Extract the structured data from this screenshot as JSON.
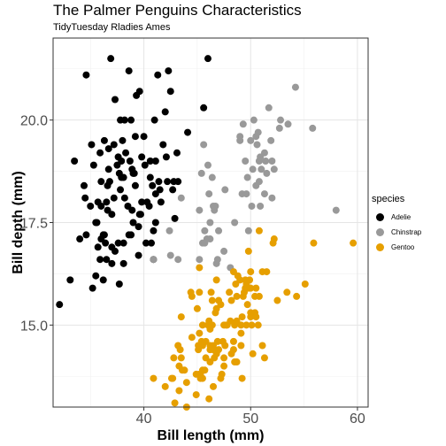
{
  "chart_data": {
    "type": "scatter",
    "title": "The Palmer Penguins Characteristics",
    "subtitle": "TidyTuesday Rladies Ames",
    "xlabel": "Bill length (mm)",
    "ylabel": "Bill depth (mm)",
    "xlim": [
      31.5,
      61
    ],
    "ylim": [
      13,
      22
    ],
    "xticks": [
      {
        "v": 40,
        "label": "40"
      },
      {
        "v": 50,
        "label": "50"
      },
      {
        "v": 60,
        "label": "60"
      }
    ],
    "yticks": [
      {
        "v": 15,
        "label": "15.0"
      },
      {
        "v": 17.5,
        "label": "17.5"
      },
      {
        "v": 20,
        "label": "20.0"
      }
    ],
    "grid": true,
    "legend": {
      "title": "species",
      "position": "right"
    },
    "series": [
      {
        "name": "Adelie",
        "color": "#000000",
        "points": [
          [
            32.1,
            15.5
          ],
          [
            33.1,
            16.1
          ],
          [
            33.5,
            19.0
          ],
          [
            34.0,
            17.1
          ],
          [
            34.4,
            18.4
          ],
          [
            34.5,
            18.1
          ],
          [
            34.6,
            21.1
          ],
          [
            34.6,
            17.2
          ],
          [
            35.0,
            17.9
          ],
          [
            35.1,
            19.4
          ],
          [
            35.2,
            15.9
          ],
          [
            35.3,
            18.9
          ],
          [
            35.5,
            17.5
          ],
          [
            35.5,
            16.2
          ],
          [
            35.6,
            17.5
          ],
          [
            35.7,
            16.9
          ],
          [
            35.9,
            19.2
          ],
          [
            35.9,
            16.6
          ],
          [
            36.0,
            18.5
          ],
          [
            36.0,
            17.9
          ],
          [
            36.0,
            17.1
          ],
          [
            36.2,
            16.1
          ],
          [
            36.2,
            17.2
          ],
          [
            36.3,
            19.5
          ],
          [
            36.4,
            17.0
          ],
          [
            36.5,
            18.0
          ],
          [
            36.5,
            16.6
          ],
          [
            36.6,
            17.8
          ],
          [
            36.6,
            18.4
          ],
          [
            36.7,
            18.8
          ],
          [
            36.7,
            19.3
          ],
          [
            36.8,
            18.5
          ],
          [
            36.9,
            21.5
          ],
          [
            37.0,
            16.9
          ],
          [
            37.0,
            16.5
          ],
          [
            37.2,
            18.1
          ],
          [
            37.2,
            19.4
          ],
          [
            37.3,
            20.5
          ],
          [
            37.3,
            16.8
          ],
          [
            37.5,
            18.9
          ],
          [
            37.6,
            19.1
          ],
          [
            37.6,
            17.0
          ],
          [
            37.7,
            18.7
          ],
          [
            37.7,
            16.0
          ],
          [
            37.8,
            18.3
          ],
          [
            37.8,
            20.0
          ],
          [
            37.9,
            18.6
          ],
          [
            38.1,
            18.6
          ],
          [
            38.1,
            17.0
          ],
          [
            38.1,
            16.5
          ],
          [
            38.2,
            18.1
          ],
          [
            38.2,
            20.0
          ],
          [
            38.3,
            19.2
          ],
          [
            38.5,
            17.9
          ],
          [
            38.6,
            21.2
          ],
          [
            38.6,
            17.2
          ],
          [
            38.7,
            19.0
          ],
          [
            38.8,
            17.2
          ],
          [
            38.8,
            20.0
          ],
          [
            38.9,
            17.8
          ],
          [
            38.9,
            18.8
          ],
          [
            39.0,
            17.5
          ],
          [
            39.0,
            18.7
          ],
          [
            39.1,
            18.7
          ],
          [
            39.2,
            19.6
          ],
          [
            39.3,
            20.6
          ],
          [
            39.5,
            16.7
          ],
          [
            39.5,
            17.4
          ],
          [
            39.6,
            17.7
          ],
          [
            39.6,
            20.7
          ],
          [
            39.7,
            17.7
          ],
          [
            39.8,
            19.1
          ],
          [
            40.1,
            18.9
          ],
          [
            40.2,
            17.0
          ],
          [
            40.3,
            18.0
          ],
          [
            40.5,
            17.9
          ],
          [
            40.6,
            18.6
          ],
          [
            40.6,
            19.0
          ],
          [
            40.7,
            17.0
          ],
          [
            40.8,
            18.4
          ],
          [
            40.9,
            16.6
          ],
          [
            41.0,
            20.0
          ],
          [
            41.1,
            18.2
          ],
          [
            41.1,
            19.0
          ],
          [
            41.3,
            21.1
          ],
          [
            41.4,
            18.5
          ],
          [
            41.5,
            18.3
          ],
          [
            41.6,
            18.0
          ],
          [
            41.8,
            19.4
          ],
          [
            42.0,
            20.2
          ],
          [
            42.1,
            19.1
          ],
          [
            42.2,
            18.5
          ],
          [
            42.3,
            21.2
          ],
          [
            42.5,
            20.7
          ],
          [
            42.7,
            18.3
          ],
          [
            42.8,
            18.5
          ],
          [
            42.9,
            17.6
          ],
          [
            43.1,
            19.2
          ],
          [
            43.2,
            18.5
          ],
          [
            44.1,
            19.7
          ],
          [
            45.6,
            20.3
          ],
          [
            46.0,
            21.5
          ],
          [
            35.7,
            18.0
          ],
          [
            37.0,
            17.7
          ],
          [
            39.8,
            18.0
          ],
          [
            41.1,
            17.5
          ],
          [
            36.3,
            17.2
          ],
          [
            38.0,
            19.5
          ],
          [
            40.0,
            19.6
          ],
          [
            37.9,
            19.0
          ],
          [
            39.2,
            18.4
          ],
          [
            40.9,
            17.3
          ]
        ]
      },
      {
        "name": "Chinstrap",
        "color": "#999999",
        "points": [
          [
            40.9,
            16.6
          ],
          [
            42.4,
            17.3
          ],
          [
            42.5,
            16.7
          ],
          [
            43.2,
            16.6
          ],
          [
            43.5,
            18.1
          ],
          [
            45.2,
            16.6
          ],
          [
            45.2,
            17.8
          ],
          [
            45.4,
            18.7
          ],
          [
            45.5,
            17.0
          ],
          [
            45.6,
            19.4
          ],
          [
            45.7,
            17.3
          ],
          [
            45.9,
            17.1
          ],
          [
            46.0,
            18.9
          ],
          [
            46.1,
            18.2
          ],
          [
            46.2,
            17.5
          ],
          [
            46.4,
            18.6
          ],
          [
            46.5,
            17.9
          ],
          [
            46.6,
            17.8
          ],
          [
            46.7,
            17.9
          ],
          [
            46.8,
            16.5
          ],
          [
            46.9,
            16.6
          ],
          [
            47.0,
            17.3
          ],
          [
            47.5,
            16.8
          ],
          [
            47.6,
            18.3
          ],
          [
            48.1,
            16.4
          ],
          [
            48.5,
            17.5
          ],
          [
            49.0,
            19.5
          ],
          [
            49.0,
            19.6
          ],
          [
            49.2,
            18.2
          ],
          [
            49.3,
            19.9
          ],
          [
            49.5,
            19.0
          ],
          [
            49.6,
            18.2
          ],
          [
            49.7,
            18.6
          ],
          [
            49.8,
            17.3
          ],
          [
            50.0,
            19.5
          ],
          [
            50.1,
            17.9
          ],
          [
            50.2,
            18.8
          ],
          [
            50.3,
            20.0
          ],
          [
            50.5,
            18.4
          ],
          [
            50.5,
            19.6
          ],
          [
            50.6,
            19.4
          ],
          [
            50.7,
            19.7
          ],
          [
            50.8,
            18.5
          ],
          [
            50.9,
            17.9
          ],
          [
            51.0,
            18.8
          ],
          [
            51.3,
            19.2
          ],
          [
            51.3,
            18.2
          ],
          [
            51.4,
            19.0
          ],
          [
            51.5,
            18.7
          ],
          [
            51.7,
            20.3
          ],
          [
            51.9,
            19.5
          ],
          [
            52.0,
            18.1
          ],
          [
            52.0,
            19.0
          ],
          [
            52.2,
            18.8
          ],
          [
            52.7,
            19.8
          ],
          [
            52.8,
            20.0
          ],
          [
            53.5,
            19.9
          ],
          [
            54.2,
            20.8
          ],
          [
            55.8,
            19.8
          ],
          [
            58.0,
            17.8
          ],
          [
            45.7,
            17.0
          ],
          [
            46.2,
            17.1
          ],
          [
            50.9,
            19.1
          ],
          [
            50.8,
            19.0
          ]
        ]
      },
      {
        "name": "Gentoo",
        "color": "#E69F00",
        "points": [
          [
            40.9,
            13.7
          ],
          [
            42.0,
            13.5
          ],
          [
            42.6,
            13.7
          ],
          [
            42.7,
            13.7
          ],
          [
            42.8,
            14.2
          ],
          [
            42.9,
            13.1
          ],
          [
            43.2,
            14.5
          ],
          [
            43.3,
            13.4
          ],
          [
            43.3,
            14.0
          ],
          [
            43.4,
            14.4
          ],
          [
            43.5,
            14.2
          ],
          [
            43.5,
            15.2
          ],
          [
            43.6,
            13.9
          ],
          [
            43.8,
            13.9
          ],
          [
            44.0,
            13.6
          ],
          [
            44.4,
            15.8
          ],
          [
            44.5,
            14.7
          ],
          [
            44.5,
            15.7
          ],
          [
            44.9,
            13.3
          ],
          [
            44.9,
            13.8
          ],
          [
            45.0,
            15.4
          ],
          [
            45.1,
            14.4
          ],
          [
            45.1,
            14.5
          ],
          [
            45.2,
            13.8
          ],
          [
            45.2,
            14.8
          ],
          [
            45.2,
            15.8
          ],
          [
            45.2,
            16.4
          ],
          [
            45.3,
            13.7
          ],
          [
            45.3,
            13.8
          ],
          [
            45.4,
            14.6
          ],
          [
            45.5,
            13.7
          ],
          [
            45.5,
            13.9
          ],
          [
            45.5,
            14.5
          ],
          [
            45.5,
            15.0
          ],
          [
            45.7,
            13.9
          ],
          [
            45.8,
            14.2
          ],
          [
            45.8,
            14.6
          ],
          [
            46.1,
            13.2
          ],
          [
            46.1,
            15.1
          ],
          [
            46.2,
            14.1
          ],
          [
            46.2,
            14.4
          ],
          [
            46.2,
            14.5
          ],
          [
            46.2,
            14.9
          ],
          [
            46.3,
            15.8
          ],
          [
            46.4,
            15.0
          ],
          [
            46.4,
            15.6
          ],
          [
            46.5,
            13.5
          ],
          [
            46.5,
            14.4
          ],
          [
            46.5,
            14.5
          ],
          [
            46.6,
            14.2
          ],
          [
            46.7,
            15.3
          ],
          [
            46.8,
            14.3
          ],
          [
            46.8,
            15.4
          ],
          [
            46.8,
            16.1
          ],
          [
            46.9,
            14.6
          ],
          [
            47.0,
            14.4
          ],
          [
            47.2,
            13.7
          ],
          [
            47.2,
            15.5
          ],
          [
            47.3,
            13.8
          ],
          [
            47.4,
            14.6
          ],
          [
            47.5,
            14.0
          ],
          [
            47.5,
            14.2
          ],
          [
            47.5,
            15.0
          ],
          [
            47.6,
            14.5
          ],
          [
            47.7,
            15.0
          ],
          [
            47.8,
            15.0
          ],
          [
            48.1,
            15.1
          ],
          [
            48.2,
            14.3
          ],
          [
            48.2,
            15.6
          ],
          [
            48.4,
            14.4
          ],
          [
            48.4,
            14.6
          ],
          [
            48.4,
            16.3
          ],
          [
            48.5,
            14.1
          ],
          [
            48.5,
            15.0
          ],
          [
            48.6,
            16.0
          ],
          [
            48.7,
            14.1
          ],
          [
            48.7,
            15.1
          ],
          [
            48.7,
            15.7
          ],
          [
            48.8,
            16.2
          ],
          [
            49.0,
            16.1
          ],
          [
            49.1,
            14.5
          ],
          [
            49.1,
            14.8
          ],
          [
            49.1,
            15.0
          ],
          [
            49.2,
            15.2
          ],
          [
            49.3,
            15.7
          ],
          [
            49.4,
            15.8
          ],
          [
            49.5,
            15.9
          ],
          [
            49.5,
            16.1
          ],
          [
            49.6,
            15.0
          ],
          [
            49.6,
            16.0
          ],
          [
            49.8,
            15.9
          ],
          [
            49.8,
            16.8
          ],
          [
            49.9,
            16.1
          ],
          [
            50.0,
            15.2
          ],
          [
            50.0,
            15.3
          ],
          [
            50.0,
            15.9
          ],
          [
            50.0,
            16.3
          ],
          [
            50.1,
            15.0
          ],
          [
            50.2,
            14.3
          ],
          [
            50.4,
            15.3
          ],
          [
            50.4,
            15.7
          ],
          [
            50.5,
            15.2
          ],
          [
            50.5,
            15.9
          ],
          [
            50.7,
            15.0
          ],
          [
            50.8,
            15.7
          ],
          [
            50.8,
            17.3
          ],
          [
            51.1,
            14.5
          ],
          [
            51.1,
            16.3
          ],
          [
            51.3,
            14.2
          ],
          [
            51.5,
            16.3
          ],
          [
            52.1,
            17.0
          ],
          [
            52.2,
            17.1
          ],
          [
            52.5,
            15.6
          ],
          [
            53.4,
            15.8
          ],
          [
            54.3,
            15.7
          ],
          [
            55.1,
            16.0
          ],
          [
            55.9,
            17.0
          ],
          [
            59.6,
            17.0
          ],
          [
            49.2,
            13.7
          ],
          [
            44.0,
            13.0
          ],
          [
            46.0,
            15.0
          ],
          [
            47.0,
            15.6
          ],
          [
            48.0,
            15.8
          ],
          [
            49.7,
            15.5
          ]
        ]
      }
    ]
  }
}
